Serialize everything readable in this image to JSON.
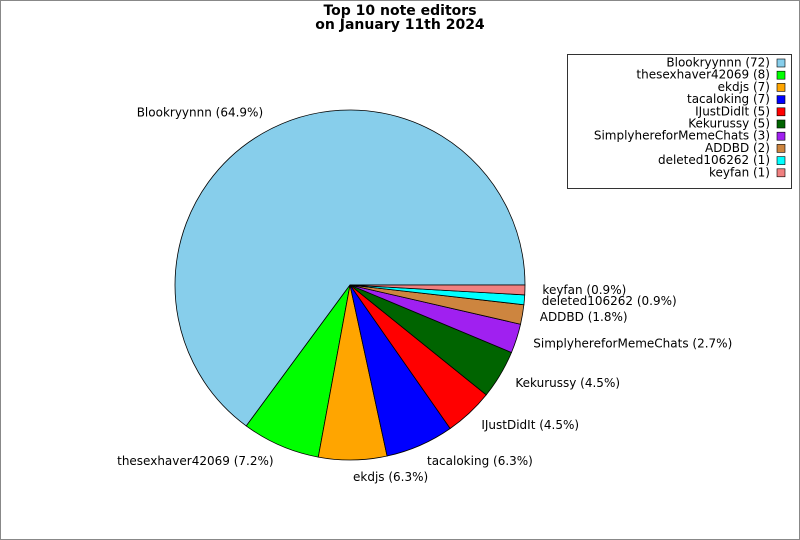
{
  "chart_data": {
    "type": "pie",
    "title": "Top 10 note editors",
    "subtitle": "on January 11th 2024",
    "values": [
      64.9,
      7.2,
      6.3,
      6.3,
      4.5,
      4.5,
      2.7,
      1.8,
      0.9,
      0.9
    ],
    "value_labels": [
      "Blookryynnn (64.9%)",
      "thesexhaver42069 (7.2%)",
      "ekdjs (6.3%)",
      "tacaloking (6.3%)",
      "IJustDidIt (4.5%)",
      "Kekurussy (4.5%)",
      "SimplyhereforMemeChats (2.7%)",
      "ADDBD (1.8%)",
      "deleted106262 (0.9%)",
      "keyfan (0.9%)"
    ],
    "colors": [
      "#87ceeb",
      "#00ff00",
      "#ffa500",
      "#0000ff",
      "#ff0000",
      "#006400",
      "#a020f0",
      "#cd853f",
      "#00ffff",
      "#f08080"
    ],
    "legend": {
      "position": "upper right",
      "labels": [
        "Blookryynnn (72)",
        "thesexhaver42069 (8)",
        "ekdjs (7)",
        "tacaloking (7)",
        "IJustDidIt (5)",
        "Kekurussy (5)",
        "SimplyhereforMemeChats (3)",
        "ADDBD (2)",
        "deleted106262 (1)",
        "keyfan (1)"
      ]
    }
  }
}
